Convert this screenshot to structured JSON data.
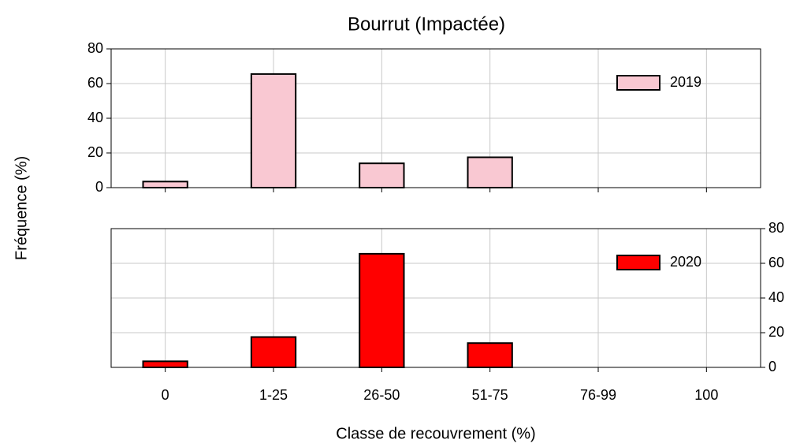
{
  "chart_data": [
    {
      "type": "bar",
      "title": "Bourrut (Impactée)",
      "ylabel": "Fréquence (%)",
      "categories": [
        "0",
        "1-25",
        "26-50",
        "51-75",
        "76-99",
        "100"
      ],
      "series": [
        {
          "name": "2019",
          "color": "#f9c8d2",
          "values": [
            3.5,
            65.5,
            14,
            17.5,
            0,
            0
          ]
        }
      ],
      "ylim": [
        0,
        80
      ],
      "yticks": [
        0,
        20,
        40,
        60,
        80
      ],
      "yaxis_position": "left",
      "grid": true,
      "legend": "upper right",
      "show_xticklabels": false
    },
    {
      "type": "bar",
      "xlabel": "Classe de recouvrement (%)",
      "categories": [
        "0",
        "1-25",
        "26-50",
        "51-75",
        "76-99",
        "100"
      ],
      "series": [
        {
          "name": "2020",
          "color": "#ff0000",
          "values": [
            3.5,
            17.5,
            65.5,
            14,
            0,
            0
          ]
        }
      ],
      "ylim": [
        0,
        80
      ],
      "yticks": [
        0,
        20,
        40,
        60,
        80
      ],
      "yaxis_position": "right",
      "grid": true,
      "legend": "upper right",
      "show_xticklabels": true
    }
  ]
}
